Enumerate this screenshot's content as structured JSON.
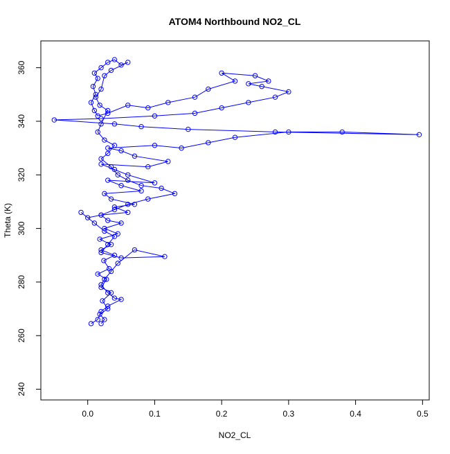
{
  "chart_data": {
    "type": "scatter",
    "title": "ATOM4 Northbound NO2_CL",
    "xlabel": "NO2_CL",
    "ylabel": "Theta (K)",
    "xlim": [
      -0.07,
      0.51
    ],
    "ylim": [
      236,
      370
    ],
    "xticks": [
      0.0,
      0.1,
      0.2,
      0.3,
      0.4,
      0.5
    ],
    "xtick_labels": [
      "0.0",
      "0.1",
      "0.2",
      "0.3",
      "0.4",
      "0.5"
    ],
    "yticks": [
      240,
      260,
      280,
      300,
      320,
      340,
      360
    ],
    "ytick_labels": [
      "240",
      "260",
      "280",
      "300",
      "320",
      "340",
      "360"
    ],
    "grid": false,
    "legend": "none",
    "connected": true,
    "series_color": "#0000ff",
    "series": [
      {
        "points": [
          [
            0.02,
            264.5
          ],
          [
            0.025,
            266
          ],
          [
            0.018,
            268
          ],
          [
            0.03,
            270
          ],
          [
            0.022,
            273
          ],
          [
            0.035,
            276
          ],
          [
            0.02,
            278
          ],
          [
            0.028,
            281
          ],
          [
            0.015,
            283
          ],
          [
            0.032,
            285
          ],
          [
            0.024,
            288
          ],
          [
            0.04,
            290
          ],
          [
            0.02,
            292
          ],
          [
            0.035,
            294
          ],
          [
            0.018,
            296
          ],
          [
            0.045,
            298
          ],
          [
            0.025,
            300
          ],
          [
            0.05,
            302
          ],
          [
            0.03,
            303
          ],
          [
            0.02,
            305
          ],
          [
            0.06,
            306
          ],
          [
            0.04,
            308
          ],
          [
            0.07,
            309
          ],
          [
            0.035,
            311
          ],
          [
            0.025,
            313
          ],
          [
            0.08,
            314
          ],
          [
            0.05,
            316
          ],
          [
            0.03,
            318
          ],
          [
            0.1,
            317
          ],
          [
            0.06,
            320
          ],
          [
            0.04,
            322
          ],
          [
            0.02,
            324
          ],
          [
            0.09,
            323
          ],
          [
            0.12,
            325
          ],
          [
            0.07,
            327
          ],
          [
            0.05,
            329
          ],
          [
            0.03,
            330
          ],
          [
            0.1,
            331
          ],
          [
            0.14,
            330
          ],
          [
            0.18,
            332
          ],
          [
            0.22,
            334
          ],
          [
            0.3,
            336
          ],
          [
            0.38,
            336
          ],
          [
            0.495,
            335
          ],
          [
            0.28,
            336
          ],
          [
            0.15,
            337
          ],
          [
            0.08,
            338
          ],
          [
            0.04,
            339
          ],
          [
            -0.05,
            340.5
          ],
          [
            0.02,
            341
          ],
          [
            0.1,
            342
          ],
          [
            0.16,
            343
          ],
          [
            0.2,
            345
          ],
          [
            0.24,
            347
          ],
          [
            0.28,
            349
          ],
          [
            0.3,
            351
          ],
          [
            0.26,
            353
          ],
          [
            0.24,
            354
          ],
          [
            0.27,
            355
          ],
          [
            0.25,
            357
          ],
          [
            0.2,
            358
          ],
          [
            0.22,
            355
          ],
          [
            0.18,
            352
          ],
          [
            0.16,
            349
          ],
          [
            0.12,
            347
          ],
          [
            0.09,
            345
          ],
          [
            0.06,
            346
          ],
          [
            0.03,
            343
          ],
          [
            0.015,
            342
          ],
          [
            0.01,
            344
          ],
          [
            0.005,
            347
          ],
          [
            0.012,
            350
          ],
          [
            0.008,
            353
          ],
          [
            0.015,
            356
          ],
          [
            0.01,
            358
          ],
          [
            0.02,
            360
          ],
          [
            0.03,
            362
          ],
          [
            0.04,
            363
          ],
          [
            0.05,
            361
          ],
          [
            0.06,
            362
          ],
          [
            0.035,
            359
          ],
          [
            0.025,
            357
          ],
          [
            0.02,
            352
          ],
          [
            0.012,
            349
          ],
          [
            0.018,
            346
          ],
          [
            0.03,
            344
          ],
          [
            0.02,
            339
          ],
          [
            0.015,
            336
          ],
          [
            0.025,
            333
          ],
          [
            0.04,
            331
          ],
          [
            0.03,
            328
          ],
          [
            0.02,
            326
          ],
          [
            0.035,
            323
          ],
          [
            0.045,
            320
          ],
          [
            0.06,
            318
          ],
          [
            0.08,
            316
          ],
          [
            0.11,
            315
          ],
          [
            0.13,
            313
          ],
          [
            0.09,
            311
          ],
          [
            0.06,
            309
          ],
          [
            0.04,
            307
          ],
          [
            0.02,
            305
          ],
          [
            0.0,
            304
          ],
          [
            -0.01,
            306
          ],
          [
            0.01,
            302
          ],
          [
            0.025,
            299
          ],
          [
            0.04,
            297
          ],
          [
            0.03,
            294
          ],
          [
            0.02,
            291
          ],
          [
            0.05,
            289
          ],
          [
            0.115,
            289.5
          ],
          [
            0.07,
            292
          ],
          [
            0.045,
            287
          ],
          [
            0.035,
            284
          ],
          [
            0.025,
            281
          ],
          [
            0.02,
            279
          ],
          [
            0.03,
            276
          ],
          [
            0.04,
            274
          ],
          [
            0.05,
            273.5
          ],
          [
            0.03,
            271
          ],
          [
            0.02,
            269
          ],
          [
            0.015,
            266
          ],
          [
            0.005,
            264.5
          ]
        ]
      }
    ]
  }
}
